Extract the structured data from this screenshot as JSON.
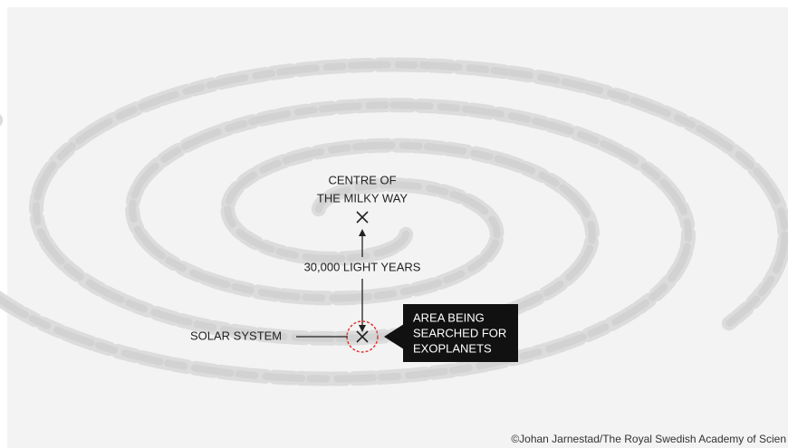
{
  "centre_label": [
    "CENTRE OF",
    "THE MILKY WAY"
  ],
  "distance_label": "30,000 LIGHT YEARS",
  "solar_system_label": "SOLAR SYSTEM",
  "search_area_label": [
    "AREA BEING",
    "SEARCHED FOR",
    "EXOPLANETS"
  ],
  "credit": "©Johan Jarnestad/The Royal Swedish Academy of Scien"
}
